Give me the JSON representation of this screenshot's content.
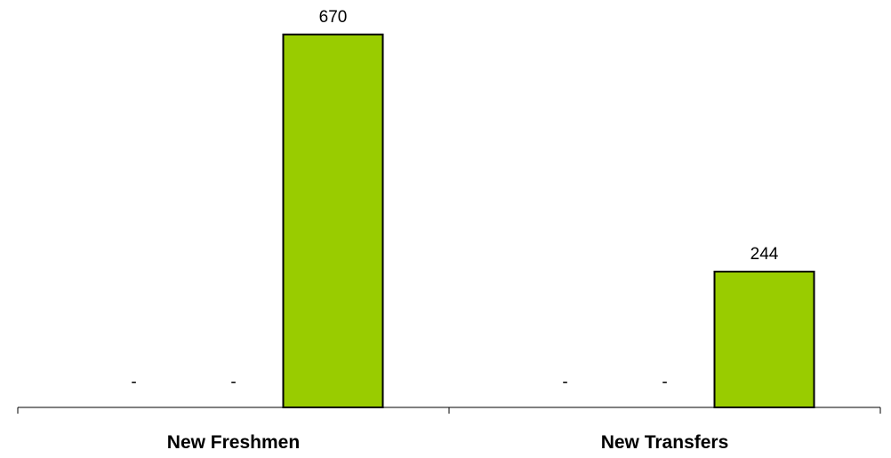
{
  "chart_data": {
    "type": "bar",
    "categories": [
      "New Freshmen",
      "New Transfers"
    ],
    "series": [
      {
        "values": [
          null,
          null
        ]
      },
      {
        "values": [
          null,
          null
        ]
      },
      {
        "values": [
          670,
          244
        ]
      }
    ],
    "data_labels": [
      [
        "-",
        "-",
        "670"
      ],
      [
        "-",
        "-",
        "244"
      ]
    ],
    "ylim": [
      0,
      700
    ],
    "grid": false,
    "legend": "none",
    "colors": {
      "bar": "#99cc00",
      "bar_border": "#000000"
    }
  }
}
